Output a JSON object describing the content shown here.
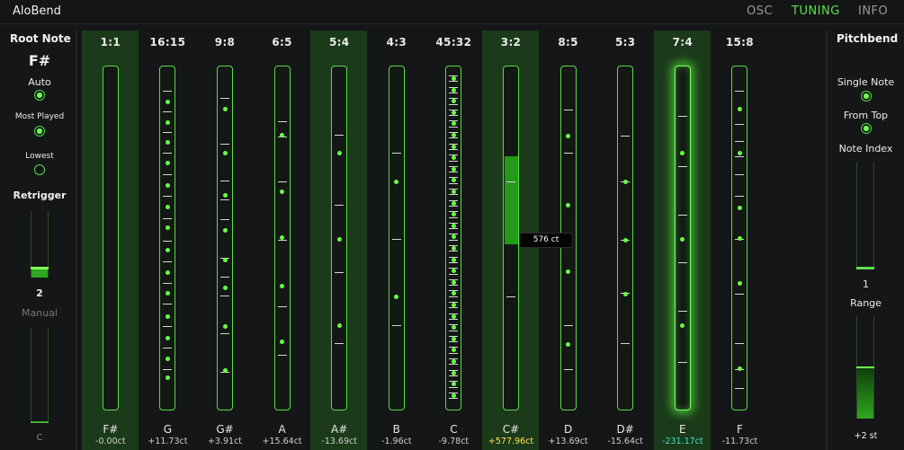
{
  "app_title": "AloBend",
  "nav": {
    "osc": "OSC",
    "tuning": "TUNING",
    "info": "INFO"
  },
  "left": {
    "root_note_title": "Root Note",
    "root_note_value": "F#",
    "auto_label": "Auto",
    "most_played_label": "Most Played",
    "lowest_label": "Lowest",
    "retrigger_title": "Retrigger",
    "retrigger_value": "2",
    "manual_label": "Manual",
    "manual_value": "C"
  },
  "right": {
    "pitchbend_title": "Pitchbend",
    "single_note_label": "Single Note",
    "from_top_label": "From Top",
    "note_index_label": "Note Index",
    "note_index_value": "1",
    "range_label": "Range",
    "range_value": "+2 st"
  },
  "tooltip": "576 ct",
  "colors": {
    "accent": "#56dc45",
    "highlight_bg": "#1b3a1a",
    "positive": "#ffe24a",
    "negative": "#3fe0c8"
  },
  "columns": [
    {
      "ratio": "1:1",
      "note": "F#",
      "cents": "-0.00ct",
      "highlighted": true,
      "state": "normal"
    },
    {
      "ratio": "16:15",
      "note": "G",
      "cents": "+11.73ct",
      "highlighted": false,
      "state": "normal"
    },
    {
      "ratio": "9:8",
      "note": "G#",
      "cents": "+3.91ct",
      "highlighted": false,
      "state": "normal"
    },
    {
      "ratio": "6:5",
      "note": "A",
      "cents": "+15.64ct",
      "highlighted": false,
      "state": "normal"
    },
    {
      "ratio": "5:4",
      "note": "A#",
      "cents": "-13.69ct",
      "highlighted": true,
      "state": "normal"
    },
    {
      "ratio": "4:3",
      "note": "B",
      "cents": "-1.96ct",
      "highlighted": false,
      "state": "normal"
    },
    {
      "ratio": "45:32",
      "note": "C",
      "cents": "-9.78ct",
      "highlighted": false,
      "state": "normal"
    },
    {
      "ratio": "3:2",
      "note": "C#",
      "cents": "+577.96ct",
      "highlighted": true,
      "state": "active"
    },
    {
      "ratio": "8:5",
      "note": "D",
      "cents": "+13.69ct",
      "highlighted": false,
      "state": "normal"
    },
    {
      "ratio": "5:3",
      "note": "D#",
      "cents": "-15.64ct",
      "highlighted": false,
      "state": "normal"
    },
    {
      "ratio": "7:4",
      "note": "E",
      "cents": "-231.17ct",
      "highlighted": true,
      "state": "glow"
    },
    {
      "ratio": "15:8",
      "note": "F",
      "cents": "-11.73ct",
      "highlighted": false,
      "state": "normal"
    }
  ]
}
